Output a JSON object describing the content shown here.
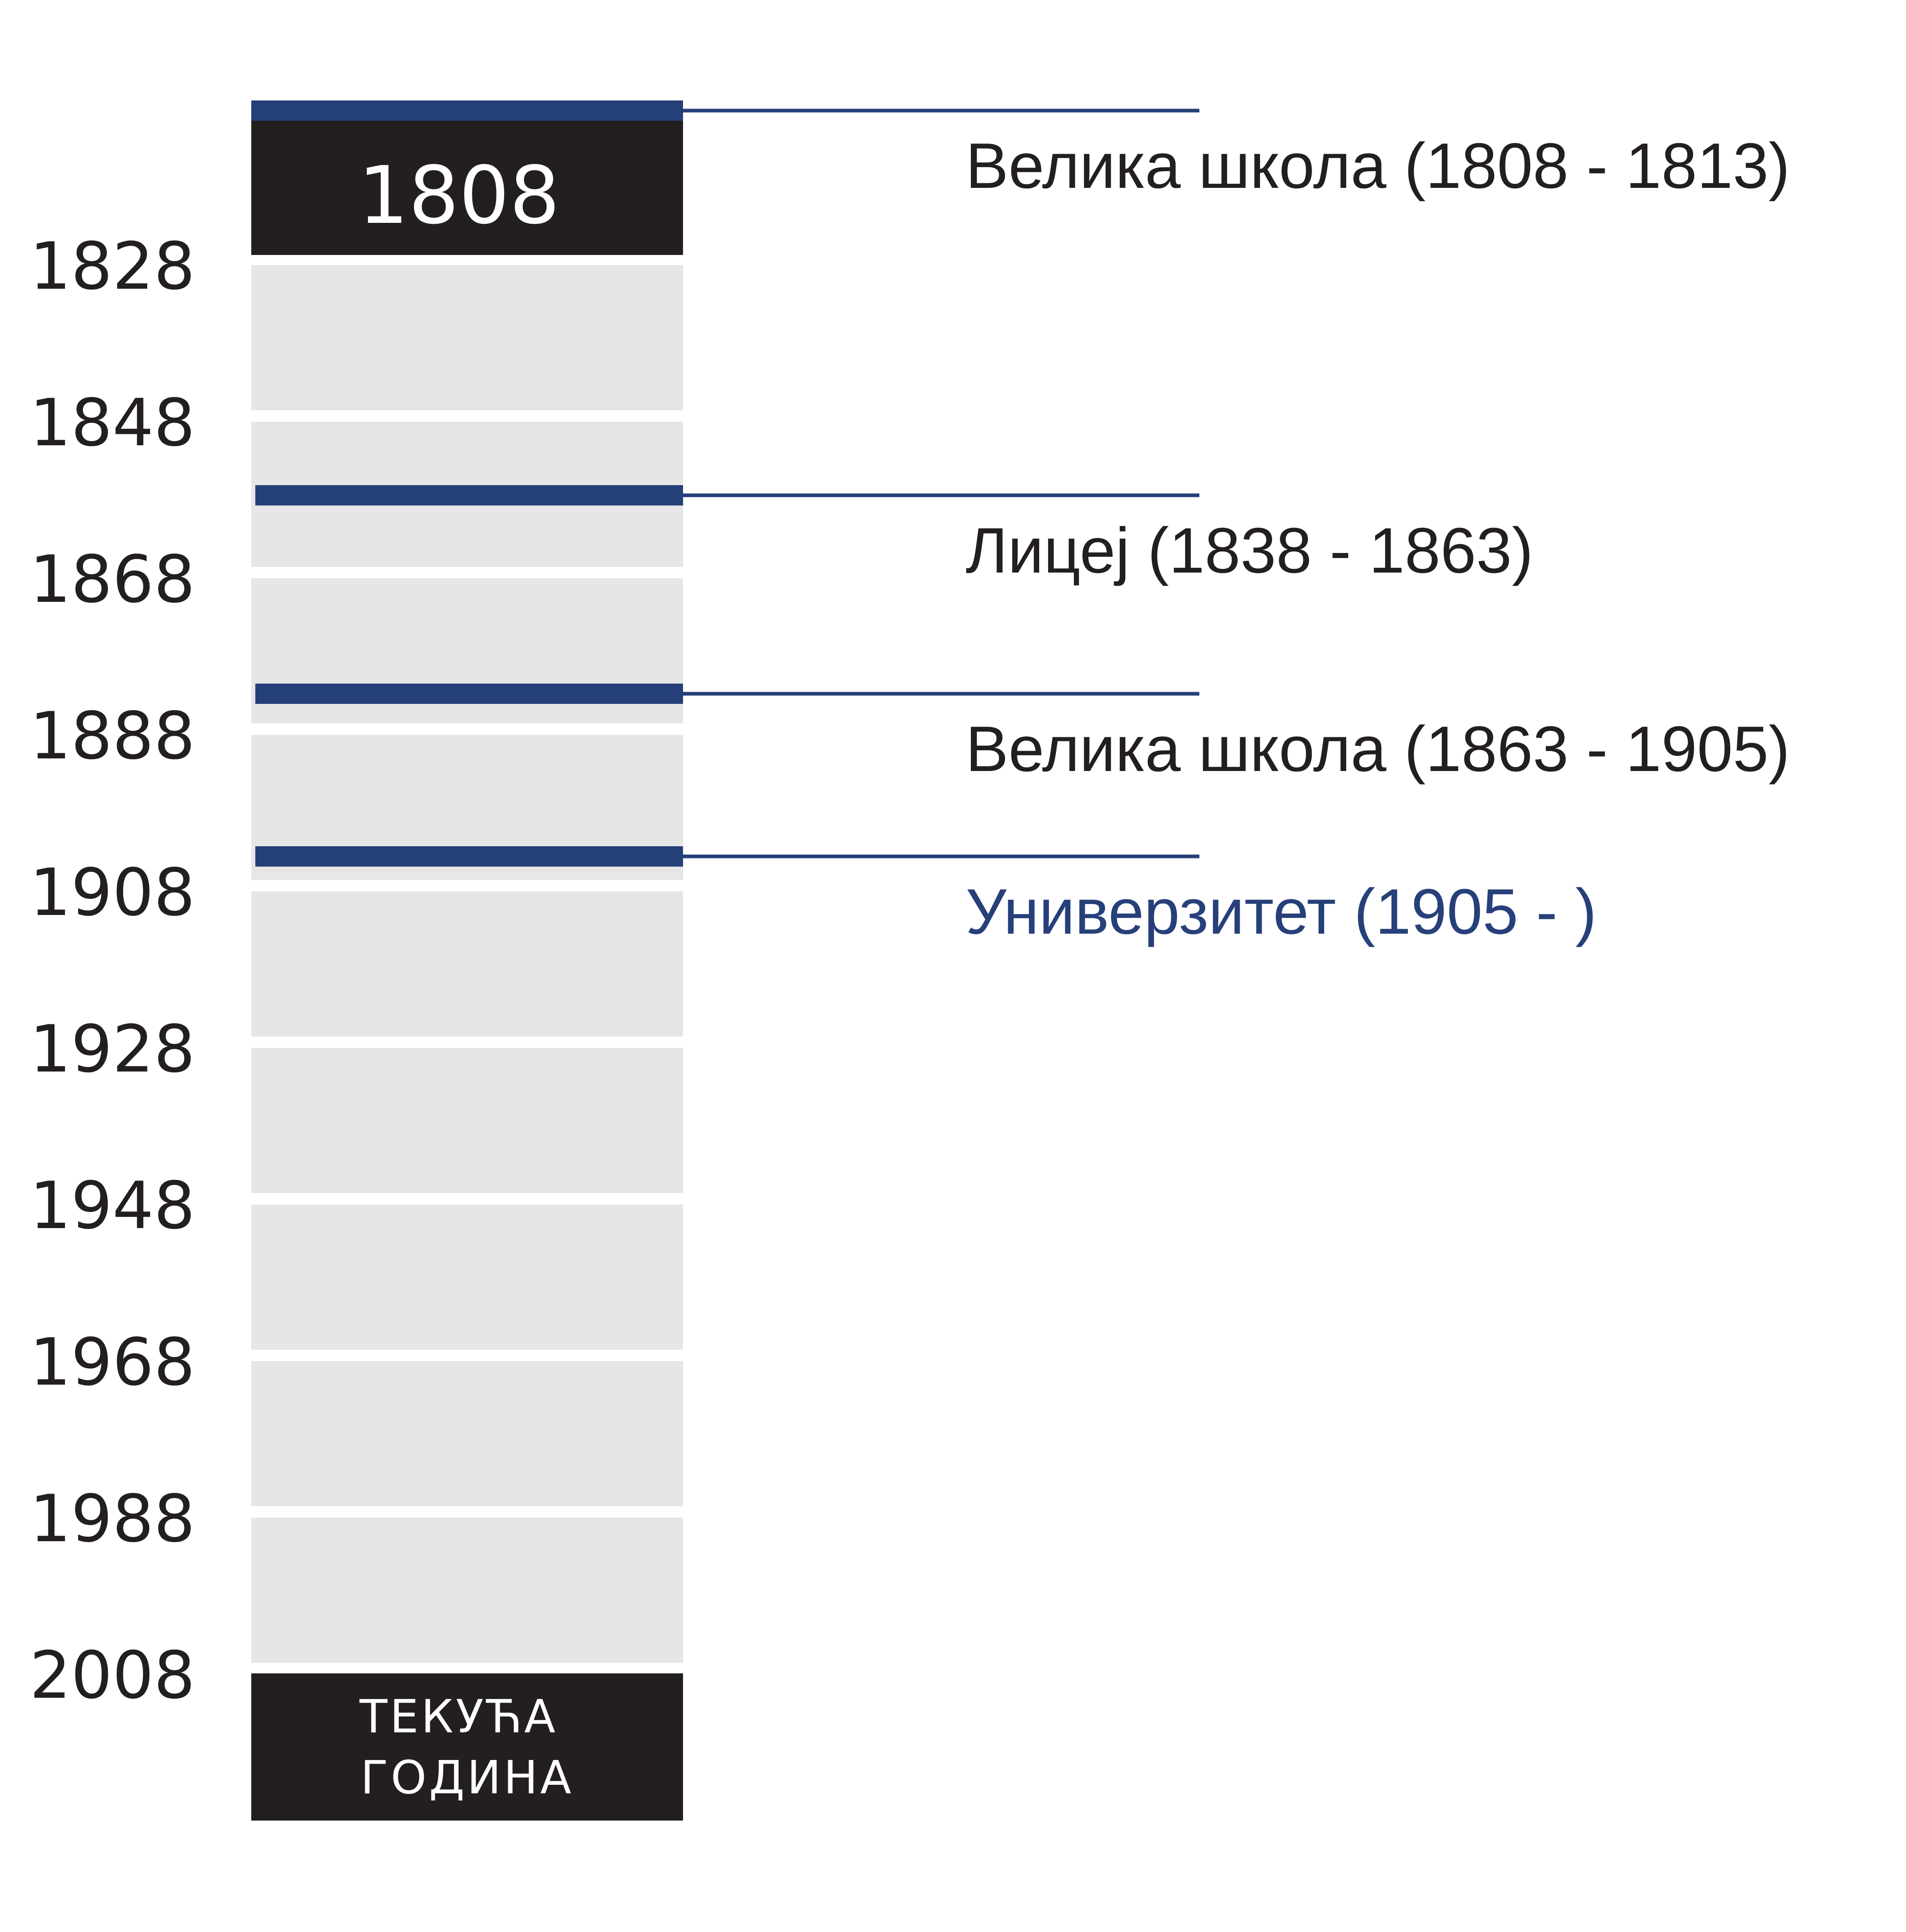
{
  "start_label": "1808",
  "end_label_lines": [
    "ТЕКУЋА",
    "ГОДИНА"
  ],
  "year_ticks": [
    "1828",
    "1848",
    "1868",
    "1888",
    "1908",
    "1928",
    "1948",
    "1968",
    "1988",
    "2008"
  ],
  "timeline": {
    "start_year": 1808,
    "tick_step": 20,
    "segments": 10
  },
  "eras": [
    {
      "label": "Велика школа (1808 - 1813)",
      "marker_year": 1808,
      "color": "#231f20"
    },
    {
      "label": "Лицеј (1838 - 1863)",
      "marker_year": 1858,
      "color": "#231f20"
    },
    {
      "label": "Велика школа (1863 - 1905)",
      "marker_year": 1883,
      "color": "#231f20"
    },
    {
      "label": "Универзитет (1905 - )",
      "marker_year": 1904,
      "color": "#27407a"
    }
  ],
  "colors": {
    "dark_block": "#231f20",
    "segment_fill": "#e6e6e6",
    "marker": "#253f78",
    "text": "#231f20",
    "accent": "#27407a"
  }
}
